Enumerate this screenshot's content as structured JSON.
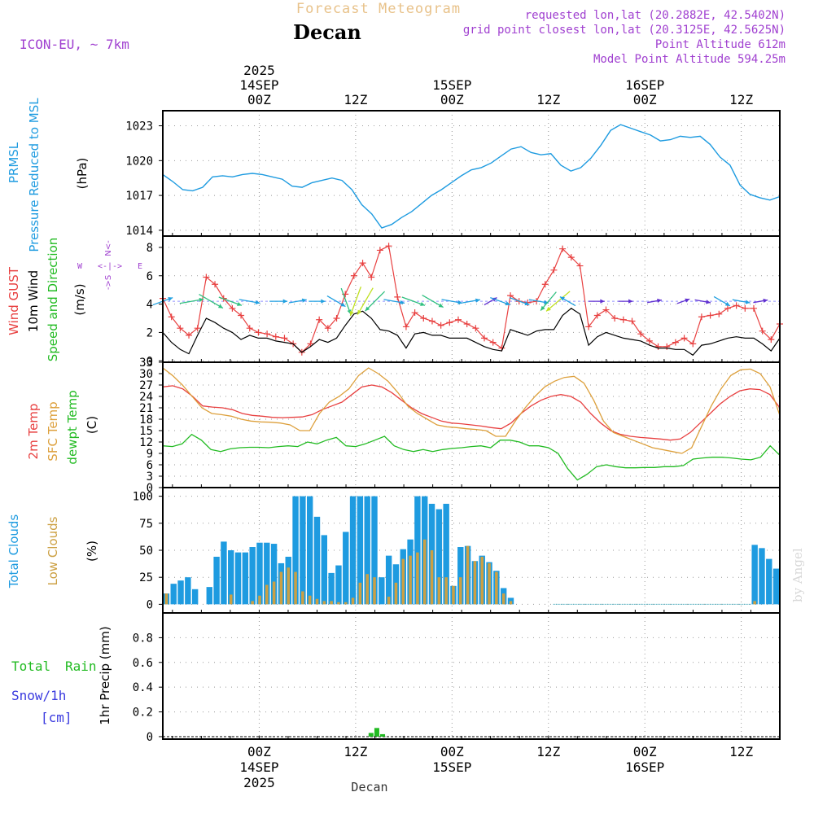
{
  "header": {
    "title": "Forecast Meteogram",
    "location": "Decan",
    "model": "ICON-EU, ~ 7km",
    "requested": "requested lon,lat (20.2882E, 42.5402N)",
    "gridpoint": "grid point closest lon,lat (20.3125E, 42.5625N)",
    "point_altitude": "Point Altitude 612m",
    "model_altitude": "Model Point Altitude 594.25m",
    "footer_location": "Decan",
    "credit": "by Angel"
  },
  "colors": {
    "pressure": "#1e9be0",
    "gust": "#e84040",
    "wind": "#000000",
    "temp": "#e84040",
    "sfc": "#dda03c",
    "dewpt": "#22bb22",
    "clouds_total": "#1e9be0",
    "clouds_low": "#cca043",
    "rain": "#22bb22",
    "header_title": "#e8c28a",
    "meta": "#a040d0",
    "snow": "#3a3adf"
  },
  "chart_data": {
    "type": "meteogram",
    "time_axis": {
      "start_hour": -10,
      "end_hour": 54,
      "step_hours": 1,
      "top_ticks": [
        {
          "hour": 0,
          "line1": "2025",
          "line2": "14SEP",
          "line3": "00Z"
        },
        {
          "hour": 10,
          "line1": "",
          "line2": "",
          "line3": "12Z"
        },
        {
          "hour": 20,
          "line1": "",
          "line2": "15SEP",
          "line3": "00Z"
        },
        {
          "hour": 30,
          "line1": "",
          "line2": "",
          "line3": "12Z"
        },
        {
          "hour": 40,
          "line1": "",
          "line2": "16SEP",
          "line3": "00Z"
        },
        {
          "hour": 50,
          "line1": "",
          "line2": "",
          "line3": "12Z"
        }
      ],
      "bottom_ticks": [
        {
          "hour": 0,
          "line1": "00Z",
          "line2": "14SEP",
          "line3": "2025"
        },
        {
          "hour": 10,
          "line1": "12Z",
          "line2": "",
          "line3": ""
        },
        {
          "hour": 20,
          "line1": "00Z",
          "line2": "15SEP",
          "line3": ""
        },
        {
          "hour": 30,
          "line1": "12Z",
          "line2": "",
          "line3": ""
        },
        {
          "hour": 40,
          "line1": "00Z",
          "line2": "16SEP",
          "line3": ""
        },
        {
          "hour": 50,
          "line1": "12Z",
          "line2": "",
          "line3": ""
        }
      ]
    },
    "panels": [
      {
        "id": "pressure",
        "labels": [
          "PRMSL",
          "Pressure Reduced to MSL",
          "(hPa)"
        ],
        "ylim": [
          1013.5,
          1024.3
        ],
        "yticks": [
          1014,
          1017,
          1020,
          1023
        ],
        "series": [
          {
            "name": "PRMSL",
            "values": [
              1018.8,
              1018.2,
              1017.5,
              1017.4,
              1017.7,
              1018.6,
              1018.7,
              1018.6,
              1018.8,
              1018.9,
              1018.8,
              1018.6,
              1018.4,
              1017.8,
              1017.7,
              1018.1,
              1018.3,
              1018.5,
              1018.3,
              1017.5,
              1016.2,
              1015.4,
              1014.2,
              1014.5,
              1015.1,
              1015.6,
              1016.3,
              1017.0,
              1017.5,
              1018.1,
              1018.7,
              1019.2,
              1019.4,
              1019.8,
              1020.4,
              1021.0,
              1021.2,
              1020.7,
              1020.5,
              1020.6,
              1019.6,
              1019.1,
              1019.4,
              1020.2,
              1021.3,
              1022.6,
              1023.1,
              1022.8,
              1022.5,
              1022.2,
              1021.7,
              1021.8,
              1022.1,
              1022.0,
              1022.1,
              1021.4,
              1020.3,
              1019.6,
              1017.9,
              1017.1,
              1016.8,
              1016.6,
              1016.9
            ]
          }
        ]
      },
      {
        "id": "wind",
        "labels": [
          "Wind GUST",
          "10m Wind",
          "Speed and Direction",
          "(m/s)"
        ],
        "compass": {
          "n": "N",
          "s": "S",
          "w": "W",
          "e": "E"
        },
        "ylim": [
          -0.1,
          8.8
        ],
        "yticks": [
          0,
          2,
          4,
          6,
          8
        ],
        "arrow_level": 4.2,
        "series": [
          {
            "name": "Wind GUST",
            "values": [
              4.4,
              3.1,
              2.3,
              1.8,
              2.3,
              5.9,
              5.4,
              4.4,
              3.7,
              3.2,
              2.3,
              2.0,
              1.9,
              1.7,
              1.6,
              1.2,
              0.6,
              1.2,
              2.9,
              2.3,
              3.0,
              4.7,
              6.0,
              6.9,
              5.9,
              7.8,
              8.1,
              4.5,
              2.4,
              3.4,
              3.0,
              2.8,
              2.5,
              2.7,
              2.9,
              2.6,
              2.3,
              1.6,
              1.3,
              0.9,
              4.6,
              4.2,
              4.1,
              4.2,
              5.4,
              6.4,
              7.9,
              7.3,
              6.7,
              2.4,
              3.2,
              3.6,
              3.0,
              2.9,
              2.8,
              1.9,
              1.4,
              1.0,
              1.0,
              1.3,
              1.6,
              1.2,
              3.1,
              3.2,
              3.3,
              3.7,
              3.9,
              3.7,
              3.7,
              2.1,
              1.5,
              2.6
            ]
          },
          {
            "name": "10m Wind",
            "values": [
              2.0,
              1.3,
              0.8,
              0.5,
              1.8,
              3.0,
              2.7,
              2.3,
              2.0,
              1.5,
              1.8,
              1.6,
              1.6,
              1.4,
              1.3,
              1.2,
              0.6,
              1.0,
              1.5,
              1.3,
              1.6,
              2.5,
              3.3,
              3.5,
              3.0,
              2.2,
              2.1,
              1.8,
              0.9,
              1.9,
              2.0,
              1.8,
              1.8,
              1.6,
              1.6,
              1.6,
              1.3,
              1.0,
              0.8,
              0.7,
              2.2,
              2.0,
              1.8,
              2.1,
              2.2,
              2.2,
              3.2,
              3.7,
              3.3,
              1.1,
              1.7,
              2.0,
              1.8,
              1.6,
              1.5,
              1.4,
              1.1,
              0.9,
              0.9,
              0.8,
              0.8,
              0.4,
              1.1,
              1.2,
              1.4,
              1.6,
              1.7,
              1.6,
              1.6,
              1.2,
              0.7,
              1.6
            ]
          }
        ],
        "arrows": [
          {
            "hour": -10,
            "dir_deg": 250,
            "speed": 2.0
          },
          {
            "hour": -7,
            "dir_deg": 260,
            "speed": 2.5
          },
          {
            "hour": -5,
            "dir_deg": 300,
            "speed": 3.0
          },
          {
            "hour": -3,
            "dir_deg": 290,
            "speed": 2.5
          },
          {
            "hour": -1,
            "dir_deg": 280,
            "speed": 2.0
          },
          {
            "hour": 2,
            "dir_deg": 270,
            "speed": 1.5
          },
          {
            "hour": 4,
            "dir_deg": 260,
            "speed": 1.5
          },
          {
            "hour": 6,
            "dir_deg": 270,
            "speed": 1.3
          },
          {
            "hour": 8,
            "dir_deg": 300,
            "speed": 2.0
          },
          {
            "hour": 9,
            "dir_deg": 340,
            "speed": 3.0
          },
          {
            "hour": 10,
            "dir_deg": 20,
            "speed": 3.5
          },
          {
            "hour": 11,
            "dir_deg": 30,
            "speed": 3.5
          },
          {
            "hour": 12,
            "dir_deg": 45,
            "speed": 3.0
          },
          {
            "hour": 14,
            "dir_deg": 280,
            "speed": 2.0
          },
          {
            "hour": 16,
            "dir_deg": 290,
            "speed": 2.5
          },
          {
            "hour": 18,
            "dir_deg": 300,
            "speed": 2.5
          },
          {
            "hour": 20,
            "dir_deg": 280,
            "speed": 2.0
          },
          {
            "hour": 22,
            "dir_deg": 260,
            "speed": 1.5
          },
          {
            "hour": 24,
            "dir_deg": 240,
            "speed": 1.0
          },
          {
            "hour": 25,
            "dir_deg": 290,
            "speed": 2.0
          },
          {
            "hour": 27,
            "dir_deg": 290,
            "speed": 2.0
          },
          {
            "hour": 29,
            "dir_deg": 280,
            "speed": 1.8
          },
          {
            "hour": 30,
            "dir_deg": 40,
            "speed": 2.5
          },
          {
            "hour": 31,
            "dir_deg": 50,
            "speed": 3.5
          },
          {
            "hour": 32,
            "dir_deg": 120,
            "speed": 1.5
          },
          {
            "hour": 35,
            "dir_deg": 270,
            "speed": 1.2
          },
          {
            "hour": 38,
            "dir_deg": 270,
            "speed": 1.0
          },
          {
            "hour": 41,
            "dir_deg": 260,
            "speed": 1.0
          },
          {
            "hour": 44,
            "dir_deg": 250,
            "speed": 0.8
          },
          {
            "hour": 46,
            "dir_deg": 280,
            "speed": 1.2
          },
          {
            "hour": 48,
            "dir_deg": 300,
            "speed": 1.6
          },
          {
            "hour": 50,
            "dir_deg": 280,
            "speed": 1.5
          },
          {
            "hour": 52,
            "dir_deg": 260,
            "speed": 1.0
          }
        ]
      },
      {
        "id": "temperature",
        "labels": [
          "2m Temp",
          "SFC Temp",
          "dewpt Temp",
          "(C)"
        ],
        "ylim": [
          0,
          33
        ],
        "yticks": [
          0,
          3,
          6,
          9,
          12,
          15,
          18,
          21,
          24,
          27,
          30,
          33
        ],
        "series": [
          {
            "name": "2m Temp",
            "values": [
              26.5,
              26.8,
              26.0,
              24.0,
              21.5,
              21.2,
              21.0,
              20.5,
              19.5,
              19.0,
              18.8,
              18.5,
              18.4,
              18.5,
              18.6,
              19.2,
              20.5,
              21.5,
              22.5,
              24.5,
              26.5,
              27.0,
              26.5,
              25.0,
              23.0,
              21.0,
              19.5,
              18.5,
              17.5,
              17.0,
              16.8,
              16.5,
              16.2,
              15.8,
              15.5,
              17.0,
              19.5,
              21.5,
              23.0,
              24.0,
              24.5,
              24.0,
              22.5,
              19.5,
              17.0,
              15.0,
              14.0,
              13.5,
              13.2,
              13.0,
              12.8,
              12.5,
              12.8,
              14.5,
              17.0,
              19.5,
              22.0,
              24.0,
              25.5,
              26.0,
              25.8,
              24.5,
              21.0
            ]
          },
          {
            "name": "SFC Temp",
            "values": [
              31.5,
              29.5,
              27.0,
              24.0,
              21.0,
              19.5,
              19.2,
              18.8,
              18.0,
              17.5,
              17.3,
              17.2,
              17.0,
              16.5,
              15.0,
              15.0,
              19.5,
              22.5,
              24.0,
              26.0,
              29.5,
              31.5,
              30.0,
              28.0,
              25.0,
              21.5,
              19.5,
              18.0,
              16.5,
              16.0,
              15.8,
              15.5,
              15.3,
              15.0,
              13.5,
              13.5,
              17.5,
              21.0,
              24.0,
              26.5,
              28.0,
              29.0,
              29.3,
              27.5,
              23.0,
              17.5,
              14.5,
              13.5,
              12.5,
              11.5,
              10.5,
              10.0,
              9.5,
              9.0,
              10.5,
              16.0,
              21.5,
              26.0,
              29.5,
              31.0,
              31.2,
              30.0,
              26.5,
              19.0
            ]
          },
          {
            "name": "dewpt Temp",
            "values": [
              11.0,
              10.8,
              11.5,
              14.0,
              12.5,
              10.0,
              9.5,
              10.2,
              10.5,
              10.6,
              10.6,
              10.5,
              10.8,
              11.0,
              10.8,
              12.0,
              11.5,
              12.5,
              13.2,
              11.0,
              10.8,
              11.5,
              12.5,
              13.5,
              11.0,
              10.0,
              9.5,
              10.0,
              9.5,
              10.0,
              10.3,
              10.5,
              10.8,
              11.0,
              10.5,
              12.5,
              12.5,
              12.0,
              11.0,
              11.0,
              10.5,
              9.0,
              5.0,
              2.0,
              3.5,
              5.5,
              6.0,
              5.5,
              5.2,
              5.2,
              5.3,
              5.3,
              5.5,
              5.5,
              5.8,
              7.5,
              7.8,
              8.0,
              8.0,
              7.8,
              7.5,
              7.3,
              8.0,
              11.0,
              8.5
            ]
          }
        ]
      },
      {
        "id": "clouds",
        "labels": [
          "Total Clouds",
          "Low Clouds",
          "(%)"
        ],
        "ylim": [
          -8,
          108
        ],
        "yticks": [
          0,
          25,
          50,
          75,
          100
        ],
        "series": [
          {
            "name": "Total Clouds",
            "values": [
              10,
              19,
              22,
              25,
              14,
              0,
              16,
              44,
              58,
              50,
              48,
              48,
              53,
              57,
              57,
              56,
              38,
              44,
              100,
              100,
              100,
              81,
              64,
              29,
              36,
              67,
              100,
              100,
              100,
              100,
              25,
              45,
              37,
              51,
              60,
              100,
              100,
              93,
              88,
              93,
              17,
              53,
              54,
              40,
              45,
              39,
              31,
              15,
              6,
              0,
              0,
              0,
              0,
              0,
              0,
              0,
              0,
              0,
              0,
              0,
              0,
              0,
              0,
              0,
              0,
              0,
              0,
              0,
              0,
              0,
              0,
              0,
              0,
              0,
              0,
              0,
              0,
              0,
              0,
              0,
              0,
              0,
              55,
              52,
              42,
              33
            ]
          },
          {
            "name": "Low Clouds",
            "values": [
              10,
              0,
              0,
              0,
              0,
              0,
              0,
              0,
              0,
              9,
              0,
              0,
              3,
              8,
              18,
              21,
              30,
              34,
              30,
              12,
              8,
              5,
              3,
              3,
              2,
              2,
              6,
              20,
              28,
              25,
              0,
              7,
              20,
              42,
              45,
              48,
              60,
              50,
              25,
              25,
              17,
              25,
              54,
              40,
              44,
              38,
              30,
              10,
              3,
              0,
              0,
              0,
              0,
              0,
              0,
              0,
              0,
              0,
              0,
              0,
              0,
              0,
              0,
              0,
              0,
              0,
              0,
              0,
              0,
              0,
              0,
              0,
              0,
              0,
              0,
              0,
              0,
              0,
              0,
              0,
              0,
              0,
              3,
              0,
              0,
              0
            ]
          }
        ]
      },
      {
        "id": "precip",
        "labels": [
          "1hr Precip (mm)"
        ],
        "legend": [
          "Total",
          "Rain",
          "Snow/1h",
          "[cm]"
        ],
        "ylim": [
          -0.02,
          1.0
        ],
        "yticks": [
          0,
          0.2,
          0.4,
          0.6,
          0.8
        ],
        "series": [
          {
            "name": "Total Rain",
            "hours": [
              11.6,
              12.2,
              12.8
            ],
            "values": [
              0.03,
              0.07,
              0.02
            ]
          }
        ]
      }
    ]
  }
}
